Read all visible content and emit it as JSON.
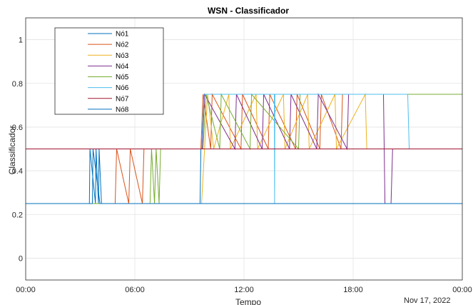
{
  "chart_data": {
    "type": "line",
    "title": "WSN - Classificador",
    "xlabel": "Tempo",
    "ylabel": "Classificador",
    "date_label": "Nov 17, 2022",
    "xlim": [
      "00:00",
      "24:00"
    ],
    "ylim": [
      -0.1,
      1.1
    ],
    "x_ticks": [
      "00:00",
      "06:00",
      "12:00",
      "18:00",
      "00:00"
    ],
    "y_ticks": [
      "0",
      "0.2",
      "0.4",
      "0.6",
      "0.8",
      "1"
    ],
    "grid": true,
    "legend_position": "top-left",
    "series": [
      {
        "name": "Nó1",
        "color": "#0072BD",
        "x": [
          "00:00",
          "03:30",
          "03:32",
          "03:50",
          "03:52",
          "04:00",
          "04:02",
          "04:10",
          "09:35",
          "09:38",
          "10:00",
          "13:00",
          "24:00"
        ],
        "y": [
          0.25,
          0.25,
          0.5,
          0.25,
          0.5,
          0.25,
          0.5,
          0.25,
          0.25,
          0.5,
          0.5,
          0.5,
          0.5
        ]
      },
      {
        "name": "Nó2",
        "color": "#D95319",
        "x": [
          "00:00",
          "04:55",
          "05:00",
          "05:40",
          "05:45",
          "06:25",
          "06:30",
          "09:38",
          "09:45",
          "10:10",
          "10:15",
          "11:50",
          "11:55",
          "13:20",
          "13:25",
          "14:50",
          "14:55",
          "16:10",
          "16:15",
          "17:20",
          "17:25",
          "24:00"
        ],
        "y": [
          0.25,
          0.25,
          0.5,
          0.25,
          0.5,
          0.25,
          0.5,
          0.5,
          0.75,
          0.5,
          0.75,
          0.5,
          0.75,
          0.5,
          0.75,
          0.5,
          0.75,
          0.5,
          0.75,
          0.5,
          0.75,
          0.75
        ]
      },
      {
        "name": "Nó3",
        "color": "#EDB120",
        "x": [
          "00:00",
          "09:40",
          "10:00",
          "10:20",
          "11:10",
          "11:15",
          "12:40",
          "12:45",
          "14:10",
          "14:15",
          "15:30",
          "15:35",
          "17:00",
          "17:05",
          "18:40",
          "18:45",
          "19:00",
          "24:00"
        ],
        "y": [
          0.25,
          0.25,
          0.75,
          0.5,
          0.75,
          0.5,
          0.75,
          0.5,
          0.75,
          0.5,
          0.75,
          0.5,
          0.75,
          0.5,
          0.75,
          0.5,
          0.5,
          0.5
        ]
      },
      {
        "name": "Nó4",
        "color": "#7E2F8E",
        "x": [
          "00:00",
          "09:42",
          "09:50",
          "11:30",
          "11:35",
          "13:00",
          "13:05",
          "14:30",
          "14:35",
          "16:00",
          "16:05",
          "17:40",
          "17:45",
          "19:40",
          "19:45",
          "20:05",
          "20:10",
          "24:00"
        ],
        "y": [
          0.5,
          0.5,
          0.75,
          0.5,
          0.75,
          0.5,
          0.75,
          0.5,
          0.75,
          0.5,
          0.75,
          0.5,
          0.75,
          0.75,
          0.25,
          0.25,
          0.5,
          0.5
        ]
      },
      {
        "name": "Nó5",
        "color": "#77AC30",
        "x": [
          "00:00",
          "06:50",
          "06:55",
          "07:05",
          "07:10",
          "07:20",
          "07:25",
          "09:45",
          "09:55",
          "10:40",
          "10:45",
          "12:20",
          "12:25",
          "15:00",
          "15:05",
          "24:00"
        ],
        "y": [
          0.25,
          0.25,
          0.5,
          0.25,
          0.5,
          0.25,
          0.5,
          0.5,
          0.75,
          0.5,
          0.75,
          0.5,
          0.75,
          0.5,
          0.75,
          0.75
        ]
      },
      {
        "name": "Nó6",
        "color": "#4DBEEE",
        "x": [
          "00:00",
          "09:40",
          "09:48",
          "13:40",
          "13:41",
          "13:42",
          "21:00",
          "21:05",
          "24:00"
        ],
        "y": [
          0.5,
          0.5,
          0.75,
          0.75,
          0.25,
          0.75,
          0.75,
          0.5,
          0.5
        ]
      },
      {
        "name": "Nó7",
        "color": "#A2142F",
        "x": [
          "00:00",
          "24:00"
        ],
        "y": [
          0.5,
          0.5
        ]
      },
      {
        "name": "Nó8",
        "color": "#0072BD",
        "x": [
          "00:00",
          "03:40",
          "03:42",
          "04:05",
          "09:38",
          "24:00"
        ],
        "y": [
          0.25,
          0.25,
          0.5,
          0.25,
          0.25,
          0.25
        ]
      }
    ]
  }
}
